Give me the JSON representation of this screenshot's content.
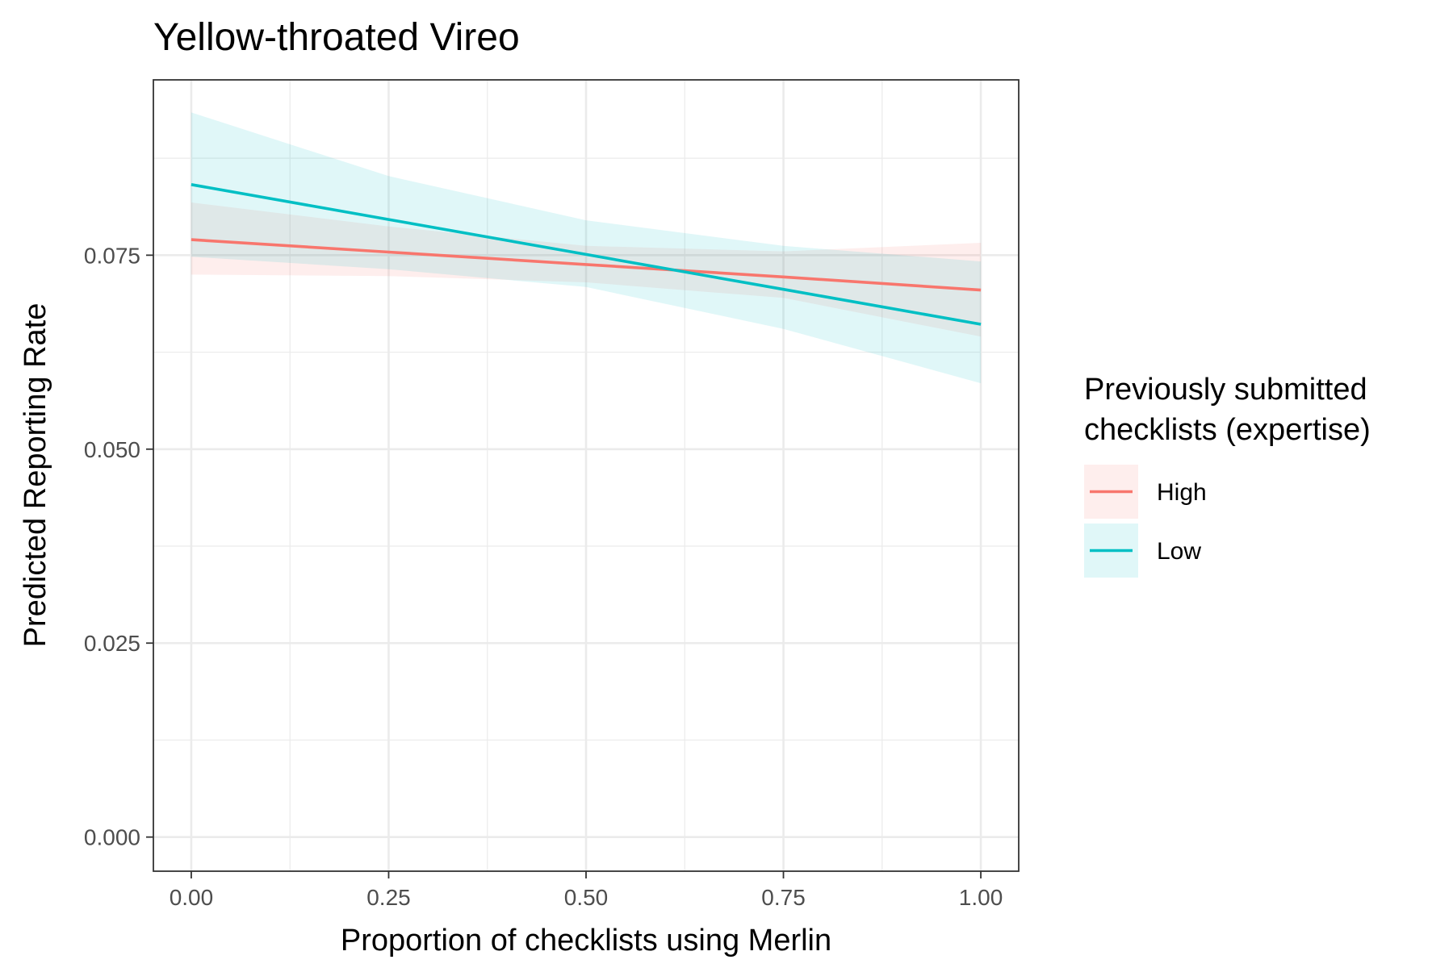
{
  "chart_data": {
    "type": "line",
    "title": "Yellow-throated Vireo",
    "xlabel": "Proportion of checklists using Merlin",
    "ylabel": "Predicted Reporting Rate",
    "xlim": [
      -0.048,
      1.048
    ],
    "ylim": [
      -0.0044,
      0.0976
    ],
    "x_ticks": [
      0.0,
      0.25,
      0.5,
      0.75,
      1.0
    ],
    "x_tick_labels": [
      "0.00",
      "0.25",
      "0.50",
      "0.75",
      "1.00"
    ],
    "y_ticks": [
      0.0,
      0.025,
      0.05,
      0.075
    ],
    "y_tick_labels": [
      "0.000",
      "0.025",
      "0.050",
      "0.075"
    ],
    "x_minor": [
      0.125,
      0.375,
      0.625,
      0.875
    ],
    "y_minor": [
      0.0125,
      0.0375,
      0.0625,
      0.0875
    ],
    "grid": true,
    "legend": {
      "title_lines": [
        "Previously submitted",
        "checklists (expertise)"
      ],
      "position": "right"
    },
    "series": [
      {
        "name": "High",
        "color": "#F8766D",
        "x": [
          0.0,
          0.25,
          0.5,
          0.75,
          1.0
        ],
        "y": [
          0.077,
          0.0754,
          0.0738,
          0.0722,
          0.0705
        ],
        "ci_lower": [
          0.0725,
          0.0723,
          0.0715,
          0.0695,
          0.0645
        ],
        "ci_upper": [
          0.0818,
          0.0787,
          0.0762,
          0.0755,
          0.0766
        ]
      },
      {
        "name": "Low",
        "color": "#00BFC4",
        "x": [
          0.0,
          0.25,
          0.5,
          0.75,
          1.0
        ],
        "y": [
          0.0841,
          0.0796,
          0.0751,
          0.0706,
          0.0661
        ],
        "ci_lower": [
          0.0748,
          0.0732,
          0.0709,
          0.0655,
          0.0585
        ],
        "ci_upper": [
          0.0934,
          0.0852,
          0.0795,
          0.0762,
          0.0742
        ]
      }
    ]
  }
}
